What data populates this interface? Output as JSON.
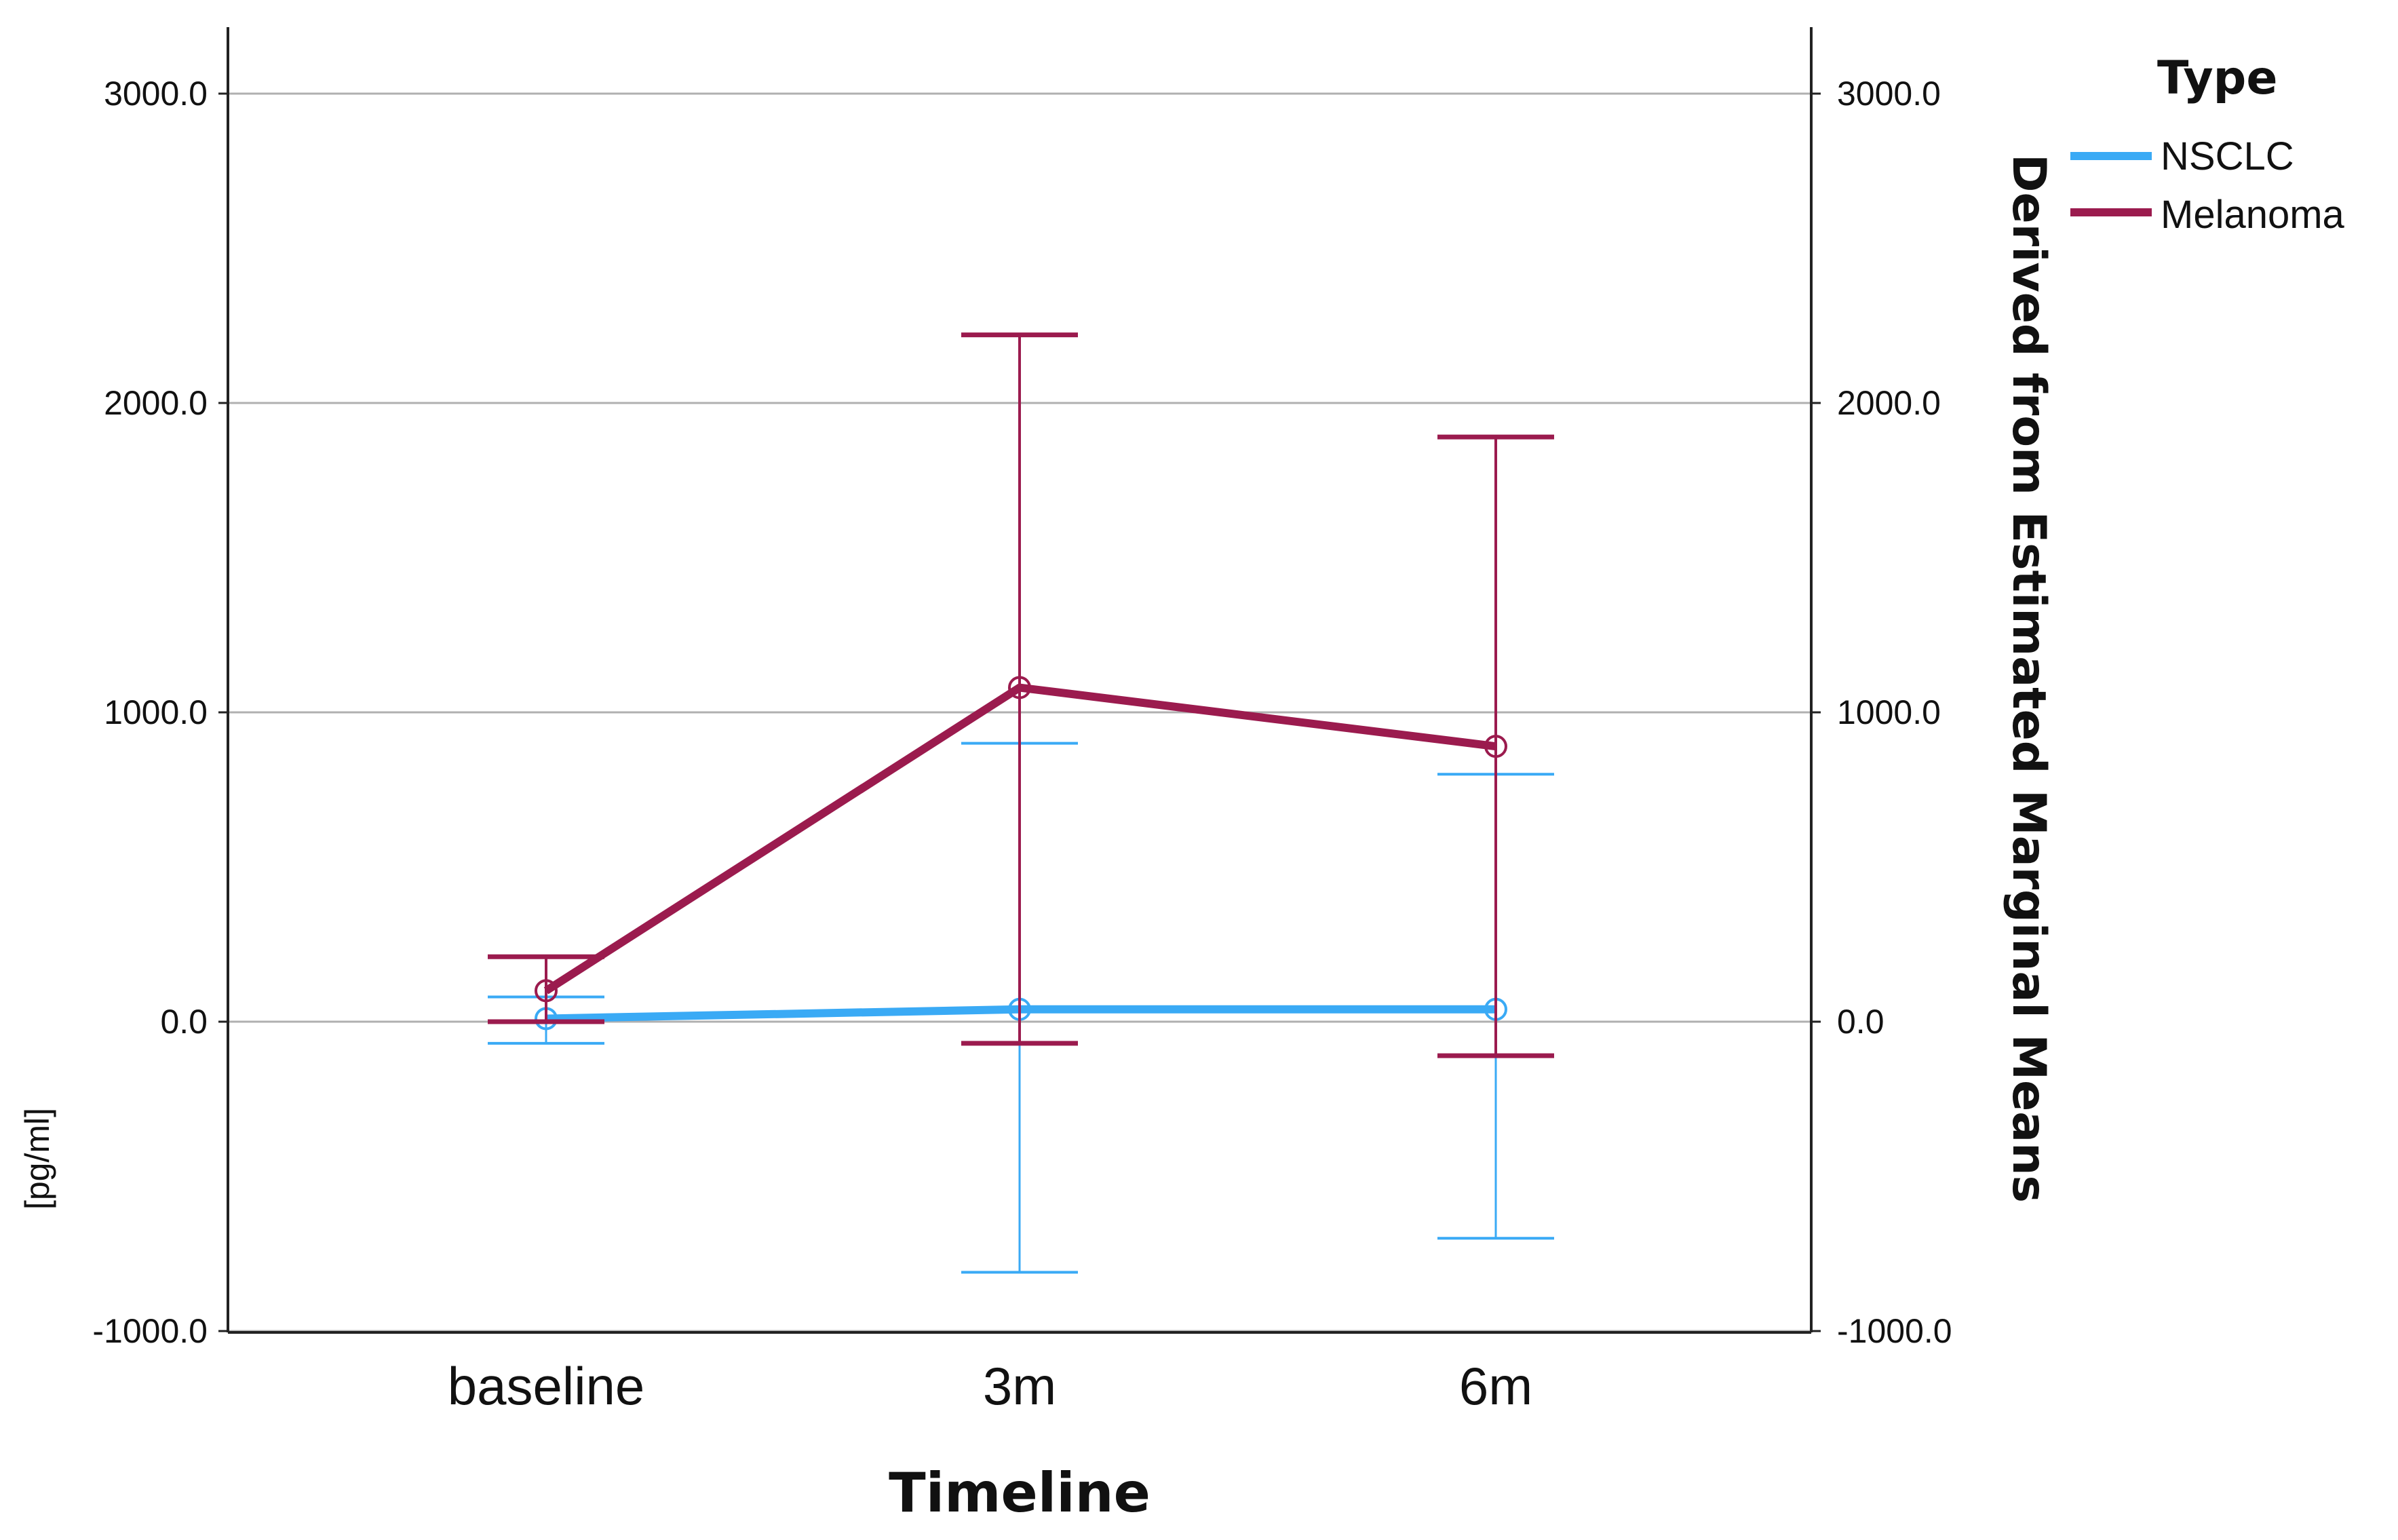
{
  "chart_data": {
    "type": "line",
    "title": "",
    "xlabel": "Timeline",
    "ylabel": "[pg/ml]",
    "y2label": "Derived from Estimated Marginal Means",
    "categories": [
      "baseline",
      "3m",
      "6m"
    ],
    "ylim": [
      -1000,
      3000
    ],
    "yticks": [
      3000,
      2000,
      1000,
      0,
      -1000
    ],
    "ytick_labels": [
      "3000.0",
      "2000.0",
      "1000.0",
      "0.0",
      "-1000.0"
    ],
    "grid": true,
    "legend": {
      "title": "Type",
      "position": "top-right"
    },
    "series": [
      {
        "name": "NSCLC",
        "color": "#3aaaf5",
        "values": [
          10,
          40,
          40
        ],
        "error_lower": [
          -70,
          -810,
          -700
        ],
        "error_upper": [
          80,
          900,
          800
        ]
      },
      {
        "name": "Melanoma",
        "color": "#9b1b4e",
        "values": [
          100,
          1080,
          890
        ],
        "error_lower": [
          0,
          -70,
          -110
        ],
        "error_upper": [
          210,
          2220,
          1890
        ]
      }
    ]
  }
}
